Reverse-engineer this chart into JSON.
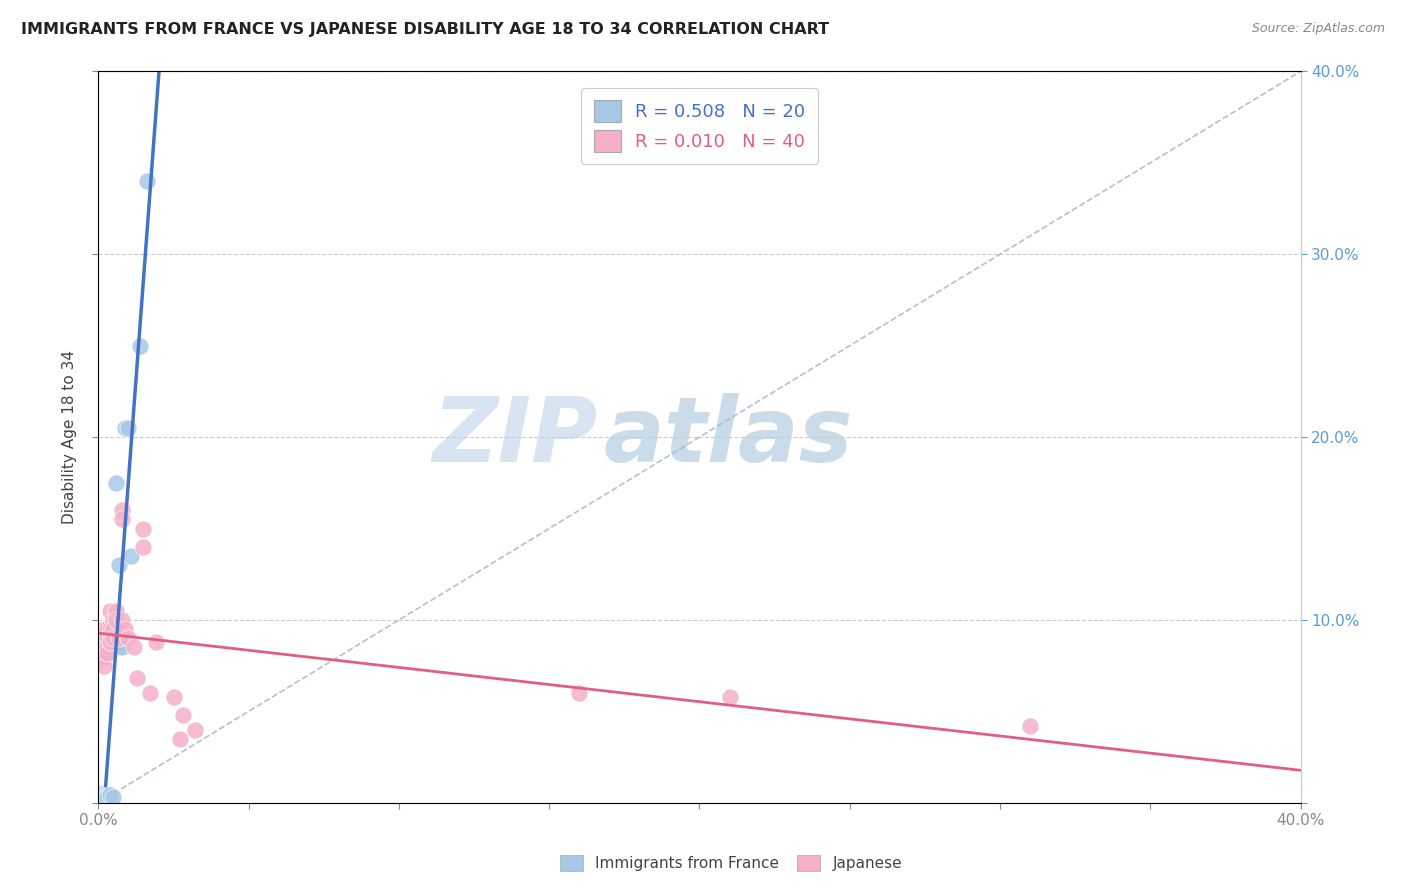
{
  "title": "IMMIGRANTS FROM FRANCE VS JAPANESE DISABILITY AGE 18 TO 34 CORRELATION CHART",
  "source": "Source: ZipAtlas.com",
  "ylabel": "Disability Age 18 to 34",
  "xlim": [
    0.0,
    0.4
  ],
  "ylim": [
    0.0,
    0.4
  ],
  "xticks": [
    0.0,
    0.05,
    0.1,
    0.15,
    0.2,
    0.25,
    0.3,
    0.35,
    0.4
  ],
  "yticks": [
    0.0,
    0.1,
    0.2,
    0.3,
    0.4
  ],
  "ytick_labels_right": [
    "",
    "10.0%",
    "20.0%",
    "30.0%",
    "40.0%"
  ],
  "legend1_text": "R = 0.508   N = 20",
  "legend2_text": "R = 0.010   N = 40",
  "france_color": "#a8c8e8",
  "france_line_color": "#4472c4",
  "japanese_color": "#f4b0c8",
  "japanese_line_color": "#e06080",
  "watermark_zip": "ZIP",
  "watermark_atlas": "atlas",
  "france_scatter": [
    [
      0.001,
      0.005
    ],
    [
      0.001,
      0.005
    ],
    [
      0.002,
      0.004
    ],
    [
      0.002,
      0.003
    ],
    [
      0.003,
      0.004
    ],
    [
      0.003,
      0.003
    ],
    [
      0.004,
      0.004
    ],
    [
      0.004,
      0.004
    ],
    [
      0.004,
      0.083
    ],
    [
      0.005,
      0.003
    ],
    [
      0.005,
      0.085
    ],
    [
      0.006,
      0.175
    ],
    [
      0.007,
      0.085
    ],
    [
      0.007,
      0.13
    ],
    [
      0.008,
      0.085
    ],
    [
      0.009,
      0.205
    ],
    [
      0.01,
      0.205
    ],
    [
      0.011,
      0.135
    ],
    [
      0.014,
      0.25
    ],
    [
      0.016,
      0.34
    ]
  ],
  "japanese_scatter": [
    [
      0.001,
      0.09
    ],
    [
      0.001,
      0.085
    ],
    [
      0.001,
      0.08
    ],
    [
      0.002,
      0.095
    ],
    [
      0.002,
      0.09
    ],
    [
      0.002,
      0.085
    ],
    [
      0.002,
      0.08
    ],
    [
      0.002,
      0.075
    ],
    [
      0.003,
      0.095
    ],
    [
      0.003,
      0.09
    ],
    [
      0.003,
      0.085
    ],
    [
      0.003,
      0.082
    ],
    [
      0.004,
      0.105
    ],
    [
      0.004,
      0.095
    ],
    [
      0.004,
      0.092
    ],
    [
      0.004,
      0.088
    ],
    [
      0.005,
      0.1
    ],
    [
      0.005,
      0.095
    ],
    [
      0.005,
      0.09
    ],
    [
      0.006,
      0.105
    ],
    [
      0.006,
      0.1
    ],
    [
      0.007,
      0.09
    ],
    [
      0.008,
      0.1
    ],
    [
      0.008,
      0.16
    ],
    [
      0.008,
      0.155
    ],
    [
      0.009,
      0.095
    ],
    [
      0.01,
      0.09
    ],
    [
      0.012,
      0.085
    ],
    [
      0.013,
      0.068
    ],
    [
      0.015,
      0.15
    ],
    [
      0.015,
      0.14
    ],
    [
      0.017,
      0.06
    ],
    [
      0.019,
      0.088
    ],
    [
      0.025,
      0.058
    ],
    [
      0.027,
      0.035
    ],
    [
      0.028,
      0.048
    ],
    [
      0.032,
      0.04
    ],
    [
      0.16,
      0.06
    ],
    [
      0.21,
      0.058
    ],
    [
      0.31,
      0.042
    ]
  ]
}
